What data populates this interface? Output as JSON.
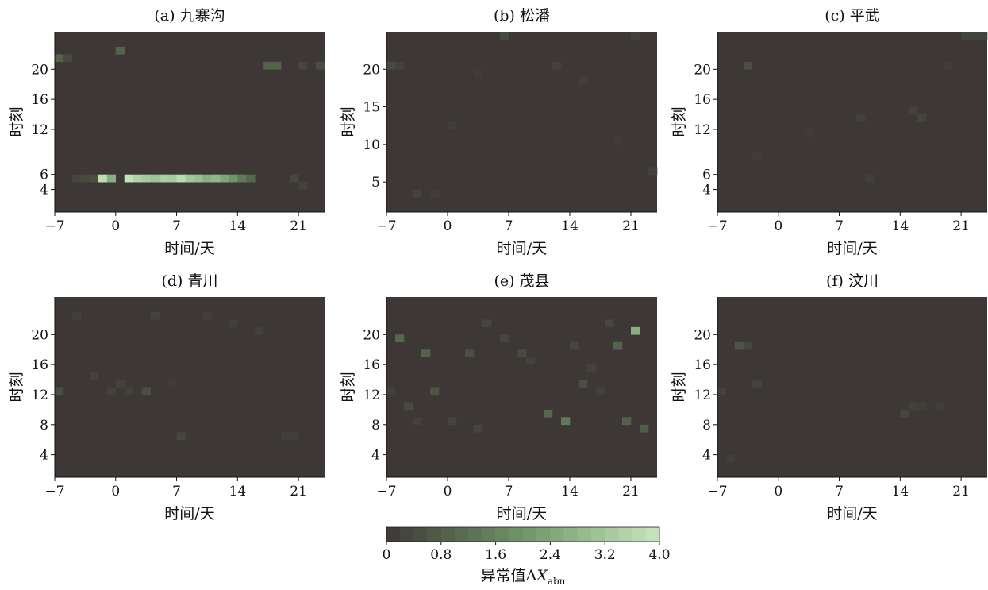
{
  "chart_data": [
    {
      "type": "heatmap",
      "title": "(a) 九寨沟",
      "xlabel": "时间/天",
      "ylabel": "时刻",
      "xlim": [
        -7,
        24
      ],
      "ylim": [
        1,
        25
      ],
      "xticks": [
        -7,
        0,
        7,
        14,
        21
      ],
      "yticks": [
        4,
        6,
        12,
        16,
        20
      ],
      "cells": [
        {
          "day": -7,
          "hour": 21,
          "value": 0.9
        },
        {
          "day": -6,
          "hour": 21,
          "value": 0.4
        },
        {
          "day": 0,
          "hour": 22,
          "value": 0.9
        },
        {
          "day": 17,
          "hour": 20,
          "value": 0.9
        },
        {
          "day": 18,
          "hour": 20,
          "value": 0.9
        },
        {
          "day": 21,
          "hour": 20,
          "value": 0.3
        },
        {
          "day": 23,
          "hour": 20,
          "value": 0.5
        },
        {
          "day": -5,
          "hour": 5,
          "value": 0.3
        },
        {
          "day": -4,
          "hour": 5,
          "value": 0.4
        },
        {
          "day": -3,
          "hour": 5,
          "value": 0.5
        },
        {
          "day": -2,
          "hour": 5,
          "value": 3.8
        },
        {
          "day": -1,
          "hour": 5,
          "value": 2.6
        },
        {
          "day": 1,
          "hour": 5,
          "value": 3.9
        },
        {
          "day": 2,
          "hour": 5,
          "value": 3.5
        },
        {
          "day": 3,
          "hour": 5,
          "value": 3.3
        },
        {
          "day": 4,
          "hour": 5,
          "value": 3.1
        },
        {
          "day": 5,
          "hour": 5,
          "value": 3.4
        },
        {
          "day": 6,
          "hour": 5,
          "value": 3.3
        },
        {
          "day": 7,
          "hour": 5,
          "value": 3.7
        },
        {
          "day": 8,
          "hour": 5,
          "value": 3.2
        },
        {
          "day": 9,
          "hour": 5,
          "value": 3.0
        },
        {
          "day": 10,
          "hour": 5,
          "value": 2.6
        },
        {
          "day": 11,
          "hour": 5,
          "value": 2.8
        },
        {
          "day": 12,
          "hour": 5,
          "value": 2.4
        },
        {
          "day": 13,
          "hour": 5,
          "value": 2.0
        },
        {
          "day": 14,
          "hour": 5,
          "value": 1.4
        },
        {
          "day": 15,
          "hour": 5,
          "value": 1.0
        },
        {
          "day": 20,
          "hour": 5,
          "value": 0.3
        },
        {
          "day": 21,
          "hour": 4,
          "value": 0.2
        }
      ]
    },
    {
      "type": "heatmap",
      "title": "(b) 松潘",
      "xlabel": "时间/天",
      "ylabel": "时刻",
      "xlim": [
        -7,
        24
      ],
      "ylim": [
        1,
        25
      ],
      "xticks": [
        -7,
        0,
        7,
        14,
        21
      ],
      "yticks": [
        5,
        10,
        15,
        20
      ],
      "cells": [
        {
          "day": -7,
          "hour": 20,
          "value": 0.4
        },
        {
          "day": -6,
          "hour": 20,
          "value": 0.2
        },
        {
          "day": 6,
          "hour": 24,
          "value": 0.4
        },
        {
          "day": 12,
          "hour": 20,
          "value": 0.2
        },
        {
          "day": 21,
          "hour": 24,
          "value": 0.2
        },
        {
          "day": 3,
          "hour": 19,
          "value": 0.1
        },
        {
          "day": 15,
          "hour": 18,
          "value": 0.15
        },
        {
          "day": 0,
          "hour": 12,
          "value": 0.15
        },
        {
          "day": 19,
          "hour": 10,
          "value": 0.1
        },
        {
          "day": 23,
          "hour": 6,
          "value": 0.2
        },
        {
          "day": -4,
          "hour": 3,
          "value": 0.25
        },
        {
          "day": -2,
          "hour": 3,
          "value": 0.1
        }
      ]
    },
    {
      "type": "heatmap",
      "title": "(c) 平武",
      "xlabel": "时间/天",
      "ylabel": "时刻",
      "xlim": [
        -7,
        24
      ],
      "ylim": [
        1,
        25
      ],
      "xticks": [
        -7,
        0,
        7,
        14,
        21
      ],
      "yticks": [
        4,
        6,
        12,
        16,
        20
      ],
      "cells": [
        {
          "day": -4,
          "hour": 20,
          "value": 0.5
        },
        {
          "day": 21,
          "hour": 24,
          "value": 0.25
        },
        {
          "day": 22,
          "hour": 24,
          "value": 0.25
        },
        {
          "day": 23,
          "hour": 24,
          "value": 0.25
        },
        {
          "day": 15,
          "hour": 14,
          "value": 0.2
        },
        {
          "day": 16,
          "hour": 13,
          "value": 0.25
        },
        {
          "day": 9,
          "hour": 13,
          "value": 0.2
        },
        {
          "day": -3,
          "hour": 8,
          "value": 0.1
        },
        {
          "day": 3,
          "hour": 11,
          "value": 0.1
        },
        {
          "day": 10,
          "hour": 5,
          "value": 0.15
        },
        {
          "day": 19,
          "hour": 20,
          "value": 0.1
        }
      ]
    },
    {
      "type": "heatmap",
      "title": "(d) 青川",
      "xlabel": "时间/天",
      "ylabel": "时刻",
      "xlim": [
        -7,
        24
      ],
      "ylim": [
        1,
        25
      ],
      "xticks": [
        -7,
        0,
        7,
        14,
        21
      ],
      "yticks": [
        4,
        8,
        12,
        16,
        20
      ],
      "cells": [
        {
          "day": -7,
          "hour": 12,
          "value": 0.5
        },
        {
          "day": 3,
          "hour": 12,
          "value": 0.5
        },
        {
          "day": -1,
          "hour": 12,
          "value": 0.2
        },
        {
          "day": 0,
          "hour": 13,
          "value": 0.2
        },
        {
          "day": 1,
          "hour": 12,
          "value": 0.2
        },
        {
          "day": -3,
          "hour": 14,
          "value": 0.2
        },
        {
          "day": -5,
          "hour": 22,
          "value": 0.15
        },
        {
          "day": 4,
          "hour": 22,
          "value": 0.25
        },
        {
          "day": 10,
          "hour": 22,
          "value": 0.15
        },
        {
          "day": 13,
          "hour": 21,
          "value": 0.15
        },
        {
          "day": 16,
          "hour": 20,
          "value": 0.2
        },
        {
          "day": 7,
          "hour": 6,
          "value": 0.3
        },
        {
          "day": 19,
          "hour": 6,
          "value": 0.15
        },
        {
          "day": 20,
          "hour": 6,
          "value": 0.15
        },
        {
          "day": 6,
          "hour": 13,
          "value": 0.1
        }
      ]
    },
    {
      "type": "heatmap",
      "title": "(e) 茂县",
      "xlabel": "时间/天",
      "ylabel": "时刻",
      "xlim": [
        -7,
        24
      ],
      "ylim": [
        1,
        25
      ],
      "xticks": [
        -7,
        0,
        7,
        14,
        21
      ],
      "yticks": [
        4,
        8,
        12,
        16,
        20
      ],
      "cells": [
        {
          "day": 21,
          "hour": 20,
          "value": 2.6
        },
        {
          "day": -6,
          "hour": 19,
          "value": 1.0
        },
        {
          "day": -3,
          "hour": 17,
          "value": 0.9
        },
        {
          "day": 2,
          "hour": 17,
          "value": 0.5
        },
        {
          "day": 19,
          "hour": 18,
          "value": 0.9
        },
        {
          "day": 13,
          "hour": 8,
          "value": 1.4
        },
        {
          "day": 11,
          "hour": 9,
          "value": 1.0
        },
        {
          "day": 20,
          "hour": 8,
          "value": 0.9
        },
        {
          "day": 22,
          "hour": 7,
          "value": 0.8
        },
        {
          "day": -2,
          "hour": 12,
          "value": 0.6
        },
        {
          "day": -5,
          "hour": 10,
          "value": 0.4
        },
        {
          "day": 15,
          "hour": 13,
          "value": 0.5
        },
        {
          "day": 14,
          "hour": 18,
          "value": 0.3
        },
        {
          "day": 4,
          "hour": 21,
          "value": 0.3
        },
        {
          "day": 6,
          "hour": 19,
          "value": 0.3
        },
        {
          "day": 8,
          "hour": 17,
          "value": 0.4
        },
        {
          "day": 18,
          "hour": 21,
          "value": 0.3
        },
        {
          "day": 0,
          "hour": 8,
          "value": 0.3
        },
        {
          "day": 3,
          "hour": 7,
          "value": 0.3
        },
        {
          "day": -4,
          "hour": 8,
          "value": 0.2
        },
        {
          "day": 16,
          "hour": 15,
          "value": 0.2
        },
        {
          "day": 17,
          "hour": 12,
          "value": 0.2
        },
        {
          "day": 9,
          "hour": 16,
          "value": 0.2
        },
        {
          "day": -7,
          "hour": 12,
          "value": 0.2
        }
      ]
    },
    {
      "type": "heatmap",
      "title": "(f) 汶川",
      "xlabel": "时间/天",
      "ylabel": "时刻",
      "xlim": [
        -7,
        24
      ],
      "ylim": [
        1,
        25
      ],
      "xticks": [
        -7,
        0,
        7,
        14,
        21
      ],
      "yticks": [
        4,
        8,
        12,
        16,
        20
      ],
      "cells": [
        {
          "day": -5,
          "hour": 18,
          "value": 0.6
        },
        {
          "day": -4,
          "hour": 18,
          "value": 0.3
        },
        {
          "day": -3,
          "hour": 13,
          "value": 0.25
        },
        {
          "day": -7,
          "hour": 12,
          "value": 0.2
        },
        {
          "day": -6,
          "hour": 3,
          "value": 0.15
        },
        {
          "day": 14,
          "hour": 9,
          "value": 0.3
        },
        {
          "day": 15,
          "hour": 10,
          "value": 0.2
        },
        {
          "day": 16,
          "hour": 10,
          "value": 0.15
        },
        {
          "day": 18,
          "hour": 10,
          "value": 0.15
        }
      ]
    }
  ],
  "colorbar": {
    "label_prefix": "异常值Δ",
    "label_var": "X",
    "label_sub": "abn",
    "range": [
      0,
      4.0
    ],
    "ticks": [
      "0",
      "0.8",
      "1.6",
      "2.4",
      "3.2",
      "4.0"
    ],
    "colors": {
      "low": "#3d3835",
      "mid": "#6f9567",
      "high": "#c8e6be"
    }
  }
}
